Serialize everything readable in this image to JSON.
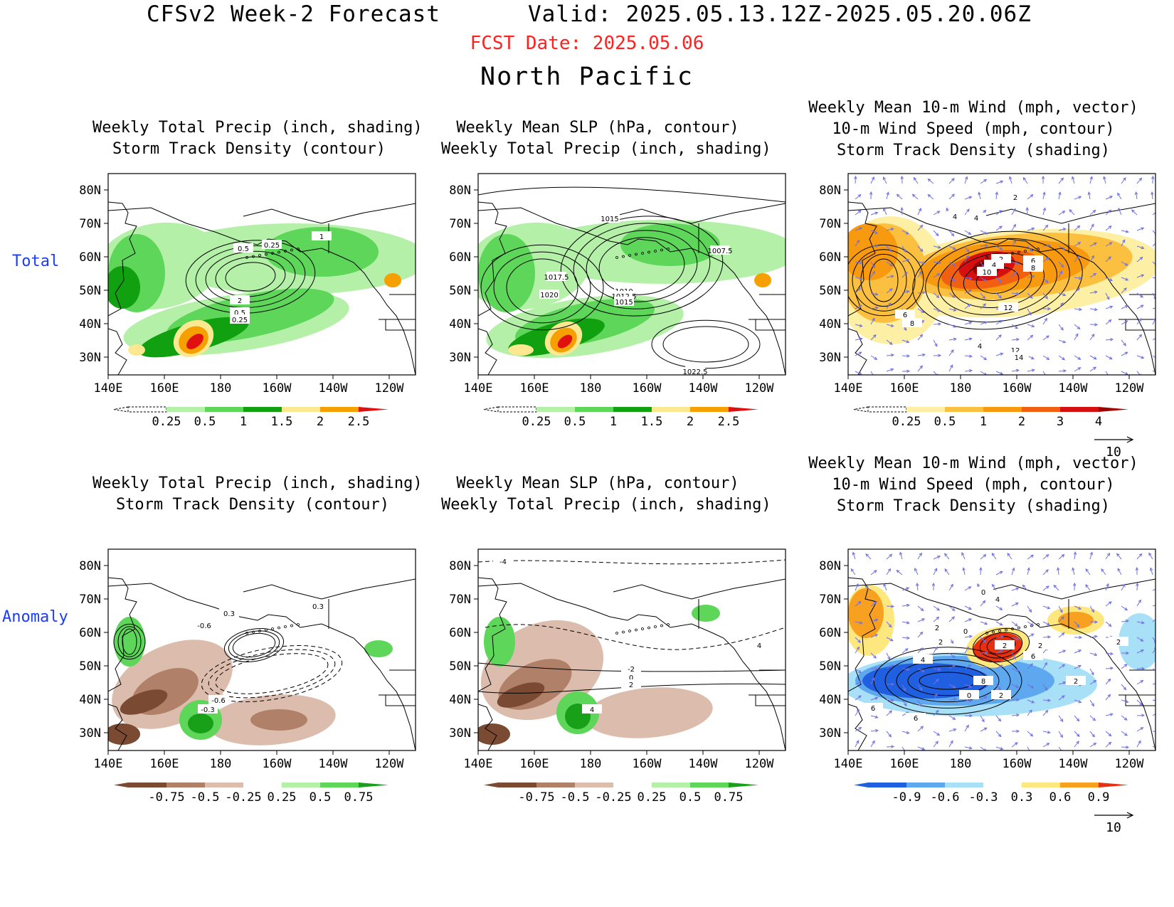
{
  "header": {
    "title_left": "CFSv2 Week-2 Forecast",
    "title_right": "Valid: 2025.05.13.12Z-2025.05.20.06Z",
    "fcst_date": "FCST Date: 2025.05.06",
    "region": "North Pacific"
  },
  "row_labels": {
    "total": "Total",
    "anomaly": "Anomaly"
  },
  "axes": {
    "lat_ticks": [
      "80N",
      "70N",
      "60N",
      "50N",
      "40N",
      "30N"
    ],
    "lon_ticks": [
      "140E",
      "160E",
      "180",
      "160W",
      "140W",
      "120W"
    ]
  },
  "panels": {
    "p1": {
      "title1": "Weekly Total Precip (inch, shading)",
      "title2": "Storm Track Density (contour)"
    },
    "p2": {
      "title1": "Weekly Mean SLP (hPa, contour)",
      "title2": "Weekly Total Precip (inch, shading)"
    },
    "p3": {
      "title1": "Weekly Mean 10-m Wind (mph, vector)",
      "title2": "10-m Wind Speed (mph, contour)",
      "title3": "Storm Track Density (shading)"
    },
    "p4": {
      "title1": "Weekly Total Precip (inch, shading)",
      "title2": "Storm Track Density (contour)"
    },
    "p5": {
      "title1": "Weekly Mean SLP (hPa, contour)",
      "title2": "Weekly Total Precip (inch, shading)"
    },
    "p6": {
      "title1": "Weekly Mean 10-m Wind (mph, vector)",
      "title2": "10-m Wind Speed (mph, contour)",
      "title3": "Storm Track Density (shading)"
    }
  },
  "contour_labels": {
    "p1": [
      "0.5",
      "0.25",
      "1",
      "2",
      "0.5",
      "0.25"
    ],
    "p2": [
      "1015",
      "1007.5",
      "1017.5",
      "1020",
      "1010",
      "1012.5",
      "1015",
      "1022.5"
    ],
    "p3": [
      "2",
      "4",
      "4",
      "2",
      "4",
      "6",
      "8",
      "10",
      "12",
      "6",
      "8",
      "4",
      "12",
      "14"
    ],
    "p4": [
      "0.3",
      "0.3",
      "-0.6",
      "-0.6",
      "-0.3"
    ],
    "p5": [
      "-4",
      "-2",
      "0",
      "2",
      "4",
      "4"
    ],
    "p6": [
      "0",
      "4",
      "2",
      "2",
      "0",
      "4",
      "2",
      "2",
      "6",
      "8",
      "0",
      "2",
      "6",
      "6",
      "2",
      "2"
    ]
  },
  "colorbars": {
    "precip_total": {
      "labels": [
        "0.25",
        "0.5",
        "1",
        "1.5",
        "2",
        "2.5"
      ],
      "colors": [
        "#ffffff",
        "#b4f0a8",
        "#5ed65a",
        "#10a010",
        "#fce890",
        "#f5a000",
        "#e01010"
      ]
    },
    "std_total": {
      "labels": [
        "0.25",
        "0.5",
        "1",
        "2",
        "3",
        "4"
      ],
      "colors": [
        "#ffffff",
        "#fdf0a4",
        "#fcc040",
        "#f89a10",
        "#f06010",
        "#d61010",
        "#a00000"
      ]
    },
    "precip_anom": {
      "labels": [
        "-0.75",
        "-0.5",
        "-0.25",
        "0.25",
        "0.5",
        "0.75"
      ],
      "colors": [
        "#7a4a32",
        "#b08068",
        "#dcbcac",
        "#ffffff",
        "#b4f0a8",
        "#5ed65a",
        "#18a018"
      ]
    },
    "std_anom": {
      "labels": [
        "-0.9",
        "-0.6",
        "-0.3",
        "0.3",
        "0.6",
        "0.9"
      ],
      "colors": [
        "#2060e0",
        "#5ea8f0",
        "#a8e0f8",
        "#ffffff",
        "#fde880",
        "#f8a020",
        "#e83010"
      ]
    }
  },
  "vector_ref": {
    "label": "10"
  },
  "colors": {
    "coast": "#000000",
    "vector": "#7070e0",
    "row_label": "#1a3cff",
    "fcst_date": "#ff2020"
  }
}
